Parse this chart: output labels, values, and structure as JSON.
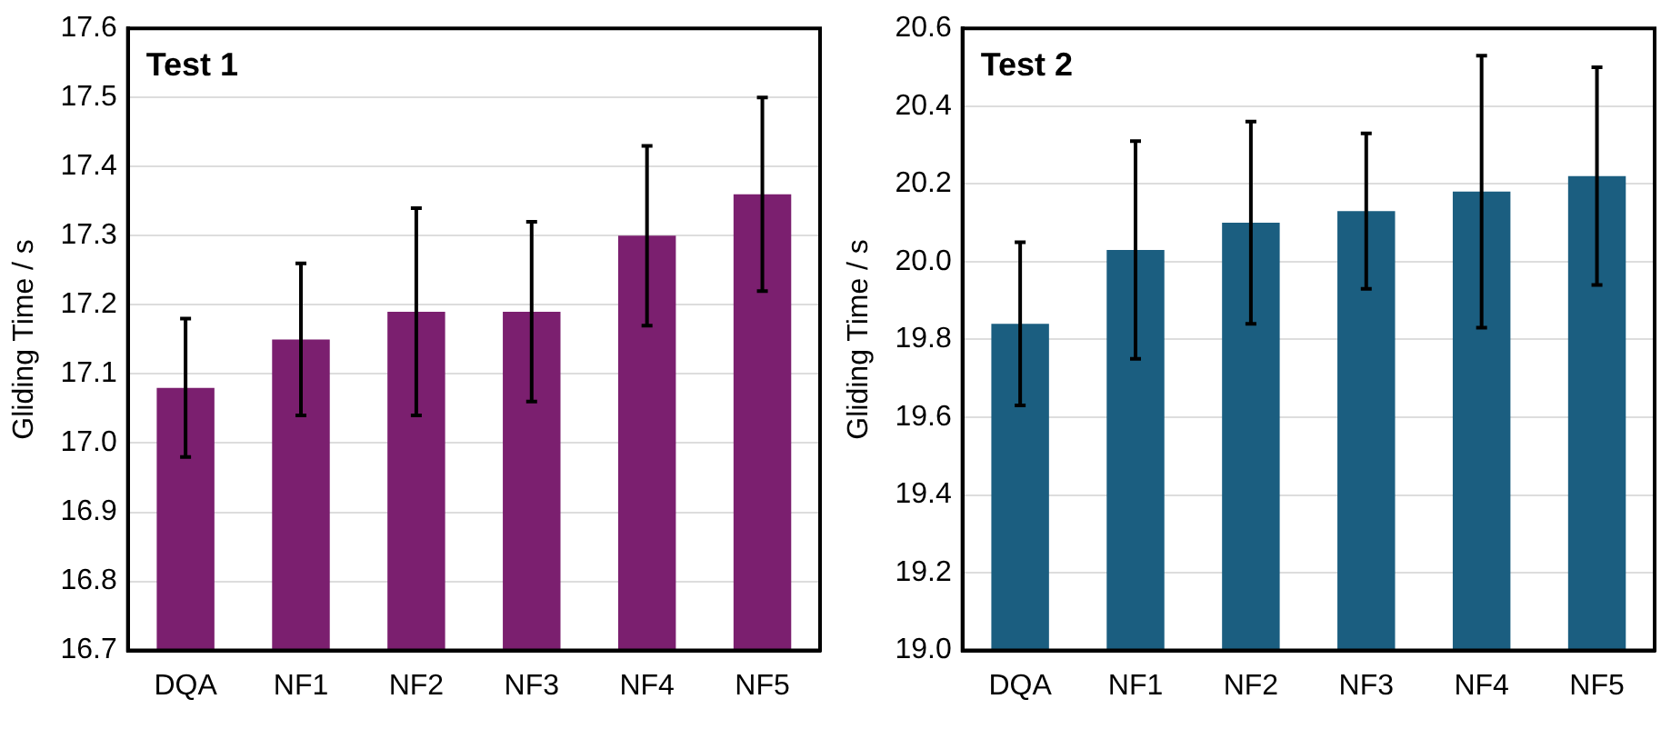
{
  "chart_data": [
    {
      "type": "bar",
      "title": "Test 1",
      "ylabel": "Gliding Time / s",
      "categories": [
        "DQA",
        "NF1",
        "NF2",
        "NF3",
        "NF4",
        "NF5"
      ],
      "values": [
        17.08,
        17.15,
        17.19,
        17.19,
        17.3,
        17.36
      ],
      "errors": [
        0.1,
        0.11,
        0.15,
        0.13,
        0.13,
        0.14
      ],
      "color": "#7b1f6f",
      "ylim": [
        16.7,
        17.6
      ],
      "yticks": [
        {
          "value": 16.7,
          "label": "16.7"
        },
        {
          "value": 16.8,
          "label": "16.8"
        },
        {
          "value": 16.9,
          "label": "16.9"
        },
        {
          "value": 17.0,
          "label": "17.0"
        },
        {
          "value": 17.1,
          "label": "17.1"
        },
        {
          "value": 17.2,
          "label": "17.2"
        },
        {
          "value": 17.3,
          "label": "17.3"
        },
        {
          "value": 17.4,
          "label": "17.4"
        },
        {
          "value": 17.5,
          "label": "17.5"
        },
        {
          "value": 17.6,
          "label": "17.6"
        }
      ],
      "grid": "y"
    },
    {
      "type": "bar",
      "title": "Test 2",
      "ylabel": "Gliding Time / s",
      "categories": [
        "DQA",
        "NF1",
        "NF2",
        "NF3",
        "NF4",
        "NF5"
      ],
      "values": [
        19.84,
        20.03,
        20.1,
        20.13,
        20.18,
        20.22
      ],
      "errors": [
        0.21,
        0.28,
        0.26,
        0.2,
        0.35,
        0.28
      ],
      "color": "#1b5e80",
      "ylim": [
        19.0,
        20.6
      ],
      "yticks": [
        {
          "value": 19.0,
          "label": "19.0"
        },
        {
          "value": 19.2,
          "label": "19.2"
        },
        {
          "value": 19.4,
          "label": "19.4"
        },
        {
          "value": 19.6,
          "label": "19.6"
        },
        {
          "value": 19.8,
          "label": "19.8"
        },
        {
          "value": 20.0,
          "label": "20.0"
        },
        {
          "value": 20.2,
          "label": "20.2"
        },
        {
          "value": 20.4,
          "label": "20.4"
        },
        {
          "value": 20.6,
          "label": "20.6"
        }
      ],
      "grid": "y"
    }
  ]
}
